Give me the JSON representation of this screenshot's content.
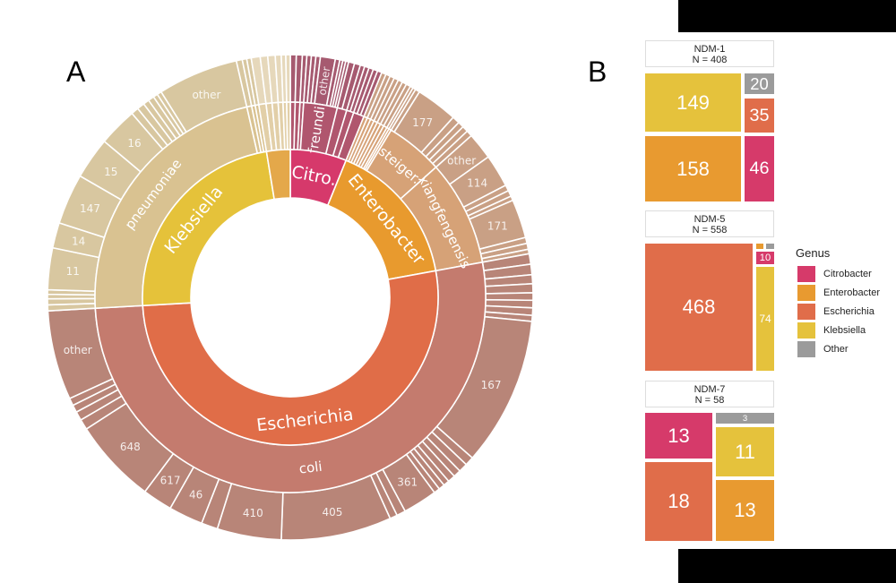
{
  "chart_data": [
    {
      "type": "sunburst",
      "panel_label": "A",
      "genera": [
        {
          "name": "Citrobacter",
          "label": "Citro.",
          "color": "#d6396b",
          "species_color": "#b0566e",
          "st_color": "#a65a70",
          "species": [
            {
              "label": "",
              "st": [
                {
                  "label": "",
                  "value": 4
                }
              ]
            },
            {
              "label": "",
              "st": [
                {
                  "label": "",
                  "value": 4
                }
              ]
            },
            {
              "label": "",
              "st": [
                {
                  "label": "",
                  "value": 3
                }
              ]
            },
            {
              "label": "freundii",
              "st": [
                {
                  "label": "",
                  "value": 3
                },
                {
                  "label": "",
                  "value": 3
                },
                {
                  "label": "",
                  "value": 3
                },
                {
                  "label": "other",
                  "value": 10
                },
                {
                  "label": "",
                  "value": 3
                },
                {
                  "label": "",
                  "value": 2
                },
                {
                  "label": "",
                  "value": 2
                },
                {
                  "label": "",
                  "value": 2
                }
              ]
            },
            {
              "label": "",
              "st": [
                {
                  "label": "",
                  "value": 4
                },
                {
                  "label": "",
                  "value": 4
                }
              ]
            },
            {
              "label": "",
              "st": [
                {
                  "label": "",
                  "value": 3
                },
                {
                  "label": "",
                  "value": 3
                }
              ]
            },
            {
              "label": "",
              "st": [
                {
                  "label": "",
                  "value": 3
                },
                {
                  "label": "",
                  "value": 3
                },
                {
                  "label": "",
                  "value": 3
                }
              ]
            }
          ]
        },
        {
          "name": "Enterobacter",
          "label": "Enterobacter",
          "color": "#e89a2e",
          "species_color": "#d6a277",
          "st_color": "#c9a085",
          "species": [
            {
              "label": "",
              "st": [
                {
                  "label": "",
                  "value": 3
                }
              ]
            },
            {
              "label": "",
              "st": [
                {
                  "label": "",
                  "value": 3
                }
              ]
            },
            {
              "label": "",
              "st": [
                {
                  "label": "",
                  "value": 3
                }
              ]
            },
            {
              "label": "",
              "st": [
                {
                  "label": "",
                  "value": 3
                }
              ]
            },
            {
              "label": "",
              "st": [
                {
                  "label": "",
                  "value": 3
                }
              ]
            },
            {
              "label": "",
              "st": [
                {
                  "label": "",
                  "value": 3
                }
              ]
            },
            {
              "label": "",
              "st": [
                {
                  "label": "",
                  "value": 3
                }
              ]
            },
            {
              "label": "",
              "st": [
                {
                  "label": "",
                  "value": 2
                }
              ]
            },
            {
              "label": "",
              "st": [
                {
                  "label": "",
                  "value": 2
                }
              ]
            },
            {
              "label": "steiger.",
              "st": [
                {
                  "label": "",
                  "value": 3
                },
                {
                  "label": "177",
                  "value": 28
                },
                {
                  "label": "",
                  "value": 5
                },
                {
                  "label": "",
                  "value": 4
                },
                {
                  "label": "",
                  "value": 4
                },
                {
                  "label": "",
                  "value": 4
                }
              ]
            },
            {
              "label": "xiangfengensis",
              "st": [
                {
                  "label": "other",
                  "value": 18
                },
                {
                  "label": "114",
                  "value": 22
                },
                {
                  "label": "",
                  "value": 4
                },
                {
                  "label": "",
                  "value": 4
                },
                {
                  "label": "",
                  "value": 3
                },
                {
                  "label": "171",
                  "value": 26
                },
                {
                  "label": "",
                  "value": 4
                },
                {
                  "label": "",
                  "value": 4
                },
                {
                  "label": "",
                  "value": 3
                }
              ]
            }
          ]
        },
        {
          "name": "Escherichia",
          "label": "Escherichia",
          "color": "#e06d48",
          "species_color": "#c47b6e",
          "st_color": "#b88578",
          "species": [
            {
              "label": "coli",
              "st": [
                {
                  "label": "",
                  "value": 7
                },
                {
                  "label": "",
                  "value": 7
                },
                {
                  "label": "",
                  "value": 6
                },
                {
                  "label": "",
                  "value": 6
                },
                {
                  "label": "",
                  "value": 5
                },
                {
                  "label": "",
                  "value": 5
                },
                {
                  "label": "",
                  "value": 5
                },
                {
                  "label": "",
                  "value": 4
                },
                {
                  "label": "167",
                  "value": 100
                },
                {
                  "label": "",
                  "value": 6
                },
                {
                  "label": "",
                  "value": 6
                },
                {
                  "label": "",
                  "value": 5
                },
                {
                  "label": "",
                  "value": 5
                },
                {
                  "label": "",
                  "value": 4
                },
                {
                  "label": "",
                  "value": 4
                },
                {
                  "label": "",
                  "value": 4
                },
                {
                  "label": "361",
                  "value": 23
                },
                {
                  "label": "",
                  "value": 6
                },
                {
                  "label": "",
                  "value": 5
                },
                {
                  "label": "405",
                  "value": 74
                },
                {
                  "label": "410",
                  "value": 43
                },
                {
                  "label": "",
                  "value": 11
                },
                {
                  "label": "46",
                  "value": 23
                },
                {
                  "label": "617",
                  "value": 20
                },
                {
                  "label": "648",
                  "value": 57
                },
                {
                  "label": "",
                  "value": 7
                },
                {
                  "label": "",
                  "value": 6
                },
                {
                  "label": "",
                  "value": 5
                },
                {
                  "label": "",
                  "value": 5
                },
                {
                  "label": "other",
                  "value": 60
                }
              ]
            }
          ]
        },
        {
          "name": "Klebsiella",
          "label": "Klebsiella",
          "color": "#e5c23a",
          "species_color": "#d9c291",
          "st_color": "#d8c7a0",
          "species": [
            {
              "label": "pneumoniae",
              "st": [
                {
                  "label": "",
                  "value": 4
                },
                {
                  "label": "",
                  "value": 4
                },
                {
                  "label": "",
                  "value": 3
                },
                {
                  "label": "",
                  "value": 3
                },
                {
                  "label": "11",
                  "value": 28
                },
                {
                  "label": "14",
                  "value": 17
                },
                {
                  "label": "147",
                  "value": 34
                },
                {
                  "label": "15",
                  "value": 28
                },
                {
                  "label": "16",
                  "value": 26
                },
                {
                  "label": "",
                  "value": 5
                },
                {
                  "label": "",
                  "value": 5
                },
                {
                  "label": "",
                  "value": 4
                },
                {
                  "label": "",
                  "value": 4
                },
                {
                  "label": "",
                  "value": 3
                },
                {
                  "label": "",
                  "value": 3
                },
                {
                  "label": "other",
                  "value": 54
                }
              ]
            },
            {
              "label": "",
              "st": [
                {
                  "label": "",
                  "value": 4
                }
              ]
            },
            {
              "label": "",
              "st": [
                {
                  "label": "",
                  "value": 3
                }
              ]
            },
            {
              "label": "",
              "st": [
                {
                  "label": "",
                  "value": 3
                }
              ]
            }
          ]
        },
        {
          "name": "Other",
          "label": "",
          "color": "#e4a84a",
          "species_color": "#e2cfa8",
          "st_color": "#e6d8bb",
          "species": [
            {
              "label": "",
              "st": [
                {
                  "label": "",
                  "value": 6
                }
              ]
            },
            {
              "label": "",
              "st": [
                {
                  "label": "",
                  "value": 5
                }
              ]
            },
            {
              "label": "",
              "st": [
                {
                  "label": "",
                  "value": 5
                }
              ]
            },
            {
              "label": "",
              "st": [
                {
                  "label": "",
                  "value": 4
                }
              ]
            },
            {
              "label": "",
              "st": [
                {
                  "label": "",
                  "value": 3
                }
              ]
            },
            {
              "label": "",
              "st": [
                {
                  "label": "",
                  "value": 3
                }
              ]
            }
          ]
        }
      ]
    },
    {
      "type": "treemap",
      "panel_label": "B",
      "legend_title": "Genus",
      "legend": [
        {
          "name": "Citrobacter",
          "color": "#d63a6a"
        },
        {
          "name": "Enterobacter",
          "color": "#e89a30"
        },
        {
          "name": "Escherichia",
          "color": "#e06d4a"
        },
        {
          "name": "Klebsiella",
          "color": "#e5c23c"
        },
        {
          "name": "Other",
          "color": "#9b9b9b"
        }
      ],
      "panels": [
        {
          "title": "NDM-1",
          "n_label": "N = 408",
          "tiles": [
            {
              "genus": "Klebsiella",
              "value": 149
            },
            {
              "genus": "Enterobacter",
              "value": 158
            },
            {
              "genus": "Other",
              "value": 20
            },
            {
              "genus": "Escherichia",
              "value": 35
            },
            {
              "genus": "Citrobacter",
              "value": 46
            }
          ]
        },
        {
          "title": "NDM-5",
          "n_label": "N = 558",
          "tiles": [
            {
              "genus": "Escherichia",
              "value": 468
            },
            {
              "genus": "Enterobacter",
              "value": 3
            },
            {
              "genus": "Other",
              "value": 3
            },
            {
              "genus": "Citrobacter",
              "value": 10
            },
            {
              "genus": "Klebsiella",
              "value": 74
            }
          ]
        },
        {
          "title": "NDM-7",
          "n_label": "N = 58",
          "tiles": [
            {
              "genus": "Citrobacter",
              "value": 13
            },
            {
              "genus": "Escherichia",
              "value": 18
            },
            {
              "genus": "Other",
              "value": 3
            },
            {
              "genus": "Klebsiella",
              "value": 11
            },
            {
              "genus": "Enterobacter",
              "value": 13
            }
          ]
        }
      ]
    }
  ]
}
